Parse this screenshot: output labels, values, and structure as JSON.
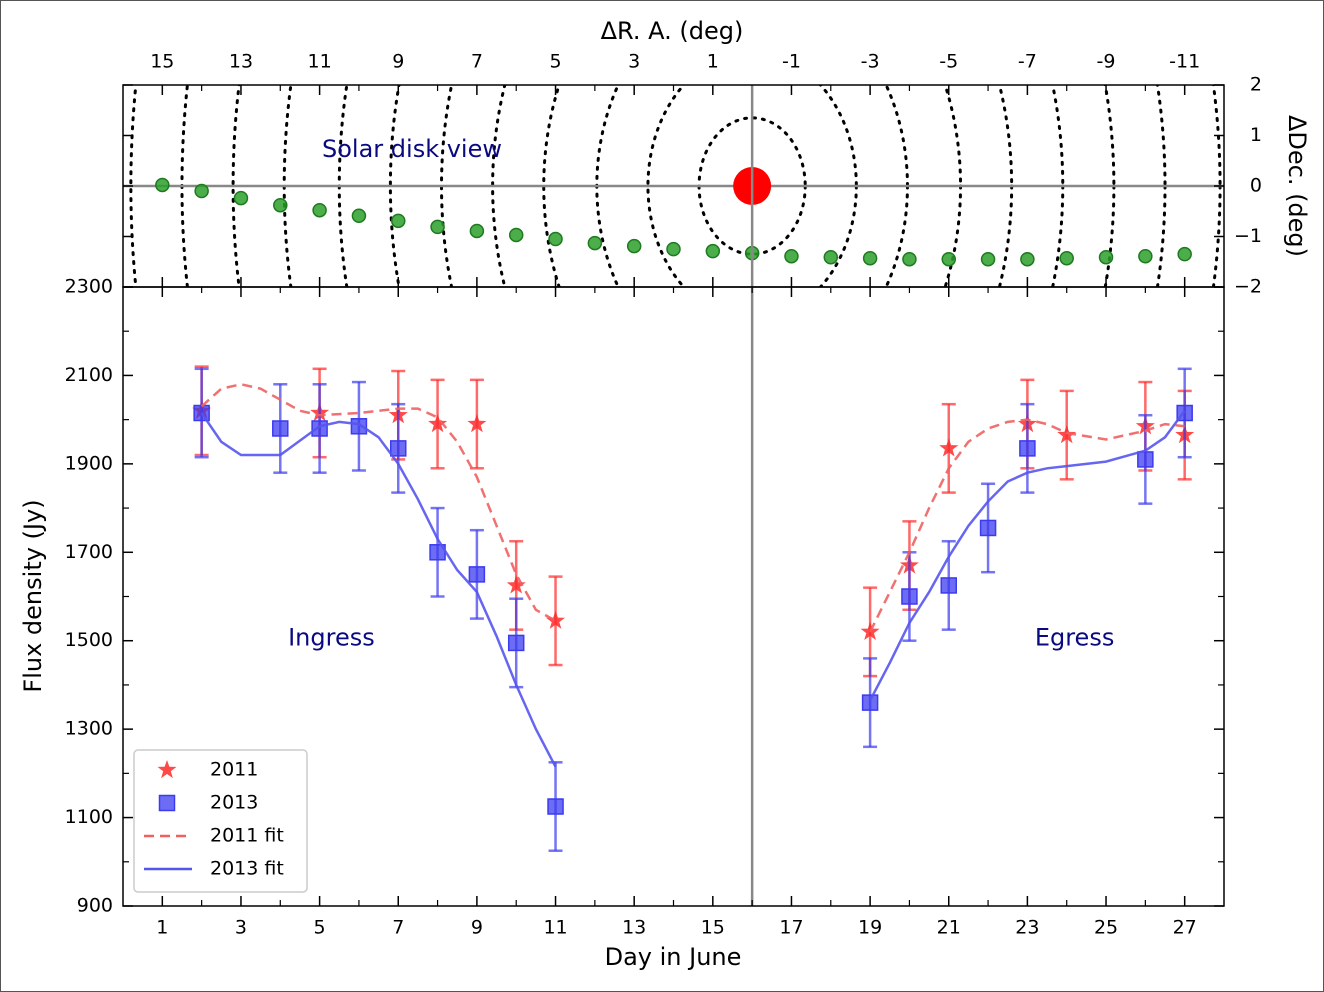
{
  "chart_data": [
    {
      "type": "scatter",
      "x_label": "ΔR. A. (deg)",
      "y_label": "ΔDec. (deg)",
      "annotation": "Solar disk view",
      "xlim": [
        16,
        -12
      ],
      "xticks": [
        15,
        13,
        11,
        9,
        7,
        5,
        3,
        1,
        -1,
        -3,
        -5,
        -7,
        -9,
        -11
      ],
      "minor_xticks": [
        14,
        12,
        10,
        8,
        6,
        4,
        2,
        0,
        -2,
        -4,
        -6,
        -8,
        -10
      ],
      "ylim": [
        -2,
        2
      ],
      "yticks": [
        {
          "value": -2,
          "label": "−2"
        },
        {
          "value": -1,
          "label": "−1"
        },
        0,
        1,
        2
      ],
      "color": "#2ca02c",
      "x": [
        15,
        14,
        13,
        12,
        11,
        10,
        9,
        8,
        7,
        6,
        5,
        4,
        3,
        2,
        1,
        0,
        -1,
        -2,
        -3,
        -4,
        -5,
        -6,
        -7,
        -8,
        -9,
        -10,
        -11
      ],
      "values": [
        0.02,
        -0.1,
        -0.24,
        -0.38,
        -0.48,
        -0.59,
        -0.69,
        -0.81,
        -0.89,
        -0.97,
        -1.05,
        -1.13,
        -1.19,
        -1.25,
        -1.29,
        -1.33,
        -1.39,
        -1.41,
        -1.43,
        -1.45,
        -1.45,
        -1.45,
        -1.45,
        -1.43,
        -1.41,
        -1.39,
        -1.35
      ],
      "sun": {
        "x": 0,
        "y": 0,
        "color": "#ff0000"
      },
      "contour_radii": [
        1.35,
        2.65,
        3.95,
        5.3,
        6.6,
        7.9,
        9.2,
        10.5,
        11.9,
        13.2,
        14.5,
        15.8
      ],
      "hline": 0,
      "vline": 0
    },
    {
      "type": "errorbar",
      "x_label": "Day in June",
      "y_label": "Flux density (Jy)",
      "xlim": [
        0,
        28
      ],
      "xticks": [
        1,
        3,
        5,
        7,
        9,
        11,
        13,
        15,
        17,
        19,
        21,
        23,
        25,
        27
      ],
      "minor_xticks": [
        2,
        4,
        6,
        8,
        10,
        12,
        14,
        16,
        18,
        20,
        22,
        24,
        26
      ],
      "ylim": [
        900,
        2300
      ],
      "yticks": [
        900,
        1100,
        1300,
        1500,
        1700,
        1900,
        2100,
        2300
      ],
      "minor_yticks": [
        1000,
        1200,
        1400,
        1600,
        1800,
        2000,
        2200
      ],
      "vline": 16,
      "legend": "lower left",
      "annotations": [
        {
          "text": "Ingress",
          "x": 5.3,
          "y": 1505
        },
        {
          "text": "Egress",
          "x": 24.2,
          "y": 1505
        }
      ],
      "series": [
        {
          "name": "2011",
          "color": "#ff2a2a",
          "marker": "star",
          "x": [
            2,
            5,
            7,
            8,
            9,
            10,
            11,
            19,
            20,
            21,
            23,
            24,
            26,
            27
          ],
          "values": [
            2020,
            2015,
            2010,
            1990,
            1990,
            1625,
            1545,
            1520,
            1670,
            1935,
            1990,
            1965,
            1985,
            1965
          ],
          "errors": [
            100,
            100,
            100,
            100,
            100,
            100,
            100,
            100,
            100,
            100,
            100,
            100,
            100,
            100
          ]
        },
        {
          "name": "2013",
          "color": "#3b3bf0",
          "marker": "square",
          "x": [
            2,
            4,
            5,
            6,
            7,
            8,
            9,
            10,
            11,
            19,
            20,
            21,
            22,
            23,
            26,
            27
          ],
          "values": [
            2015,
            1980,
            1980,
            1985,
            1935,
            1700,
            1650,
            1495,
            1125,
            1360,
            1600,
            1625,
            1755,
            1935,
            1910,
            2015
          ],
          "errors": [
            100,
            100,
            100,
            100,
            100,
            100,
            100,
            100,
            100,
            100,
            100,
            100,
            100,
            100,
            100,
            100
          ]
        },
        {
          "name": "2011 fit",
          "color": "#f06060",
          "linestyle": "dashed",
          "x": [
            2,
            2.5,
            3,
            3.5,
            4,
            4.5,
            5,
            6,
            7,
            7.5,
            8,
            8.5,
            9,
            9.5,
            10,
            10.5,
            11,
            15,
            19,
            19.5,
            20,
            20.5,
            21,
            21.5,
            22,
            22.5,
            23,
            23.5,
            24,
            25,
            26,
            26.5,
            27
          ],
          "values": [
            2030,
            2070,
            2080,
            2070,
            2045,
            2020,
            2010,
            2015,
            2025,
            2025,
            2005,
            1950,
            1870,
            1760,
            1650,
            1570,
            1545,
            null,
            1520,
            1610,
            1700,
            1800,
            1890,
            1950,
            1980,
            1995,
            2000,
            1990,
            1970,
            1955,
            1975,
            1990,
            1985
          ]
        },
        {
          "name": "2013 fit",
          "color": "#5555ee",
          "linestyle": "solid",
          "x": [
            2,
            2.5,
            3,
            4,
            5,
            5.5,
            6,
            6.5,
            7,
            7.5,
            8,
            8.5,
            9,
            9.5,
            10,
            10.5,
            11,
            15,
            19,
            19.5,
            20,
            20.5,
            21,
            21.5,
            22,
            22.5,
            23,
            23.5,
            24,
            25,
            26,
            26.5,
            27
          ],
          "values": [
            2015,
            1950,
            1920,
            1920,
            1985,
            1995,
            1990,
            1960,
            1900,
            1820,
            1730,
            1660,
            1610,
            1510,
            1400,
            1300,
            1215,
            null,
            1365,
            1450,
            1540,
            1610,
            1690,
            1760,
            1815,
            1860,
            1880,
            1890,
            1895,
            1905,
            1930,
            1960,
            2020
          ]
        }
      ]
    }
  ]
}
